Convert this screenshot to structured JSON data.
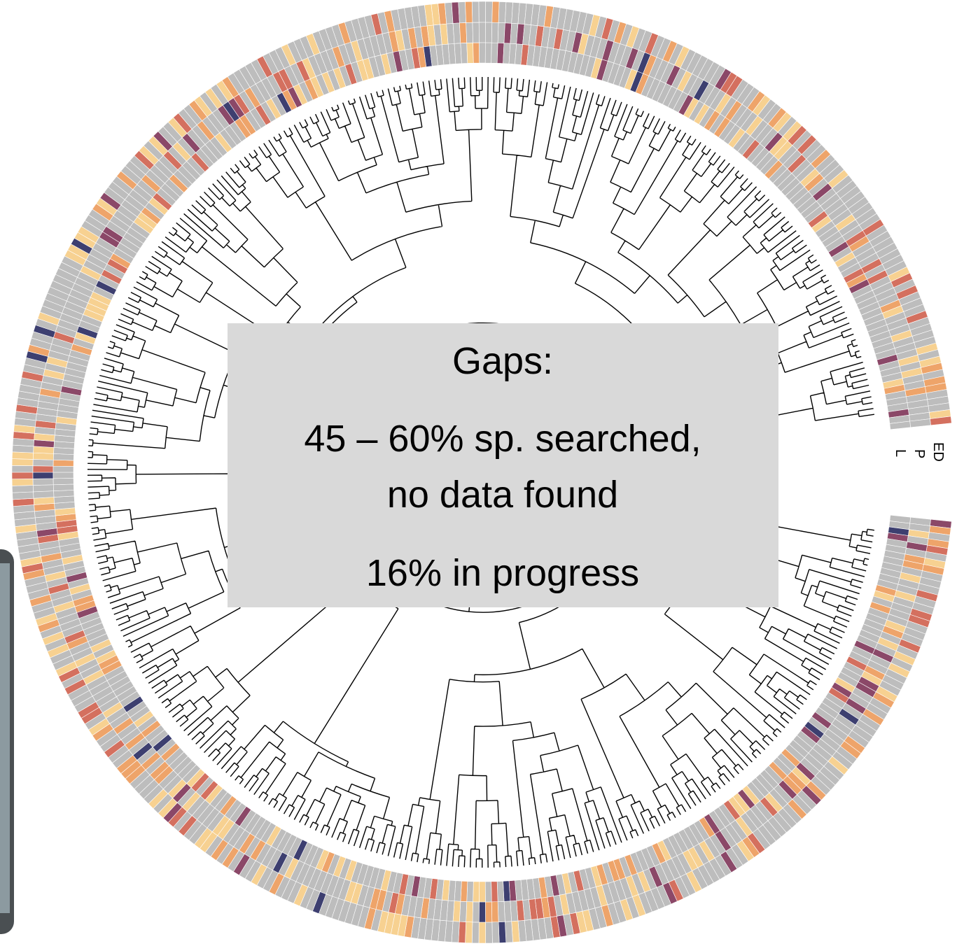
{
  "ring_labels": [
    "ED",
    "P",
    "L"
  ],
  "box": {
    "title": "Gaps:",
    "lines": [
      "45 – 60% sp. searched,",
      "no data found"
    ],
    "footer": "16% in progress"
  }
}
